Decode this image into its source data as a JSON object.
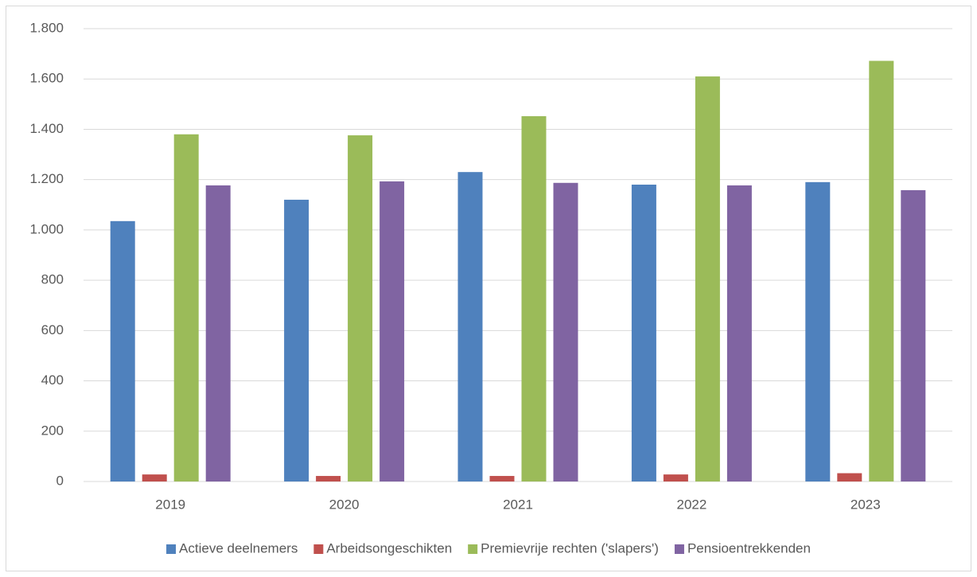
{
  "chart_data": {
    "type": "bar",
    "categories": [
      "2019",
      "2020",
      "2021",
      "2022",
      "2023"
    ],
    "series": [
      {
        "name": "Actieve deelnemers",
        "color": "#4f81bd",
        "values": [
          1035,
          1120,
          1230,
          1180,
          1190
        ]
      },
      {
        "name": "Arbeidsongeschikten",
        "color": "#c0504d",
        "values": [
          28,
          22,
          22,
          28,
          33
        ]
      },
      {
        "name": "Premievrije rechten ('slapers')",
        "color": "#9bbb59",
        "values": [
          1380,
          1376,
          1452,
          1610,
          1672
        ]
      },
      {
        "name": "Pensioentrekkenden",
        "color": "#8064a2",
        "values": [
          1177,
          1193,
          1187,
          1177,
          1158
        ]
      }
    ],
    "ylim": [
      0,
      1800
    ],
    "yticks": [
      0,
      200,
      400,
      600,
      800,
      {
        "value": 1000,
        "label": "1.000"
      },
      {
        "value": 1200,
        "label": "1.200"
      },
      {
        "value": 1400,
        "label": "1.400"
      },
      {
        "value": 1600,
        "label": "1.600"
      },
      {
        "value": 1800,
        "label": "1.800"
      }
    ],
    "grid": true,
    "legend": "bottom"
  }
}
